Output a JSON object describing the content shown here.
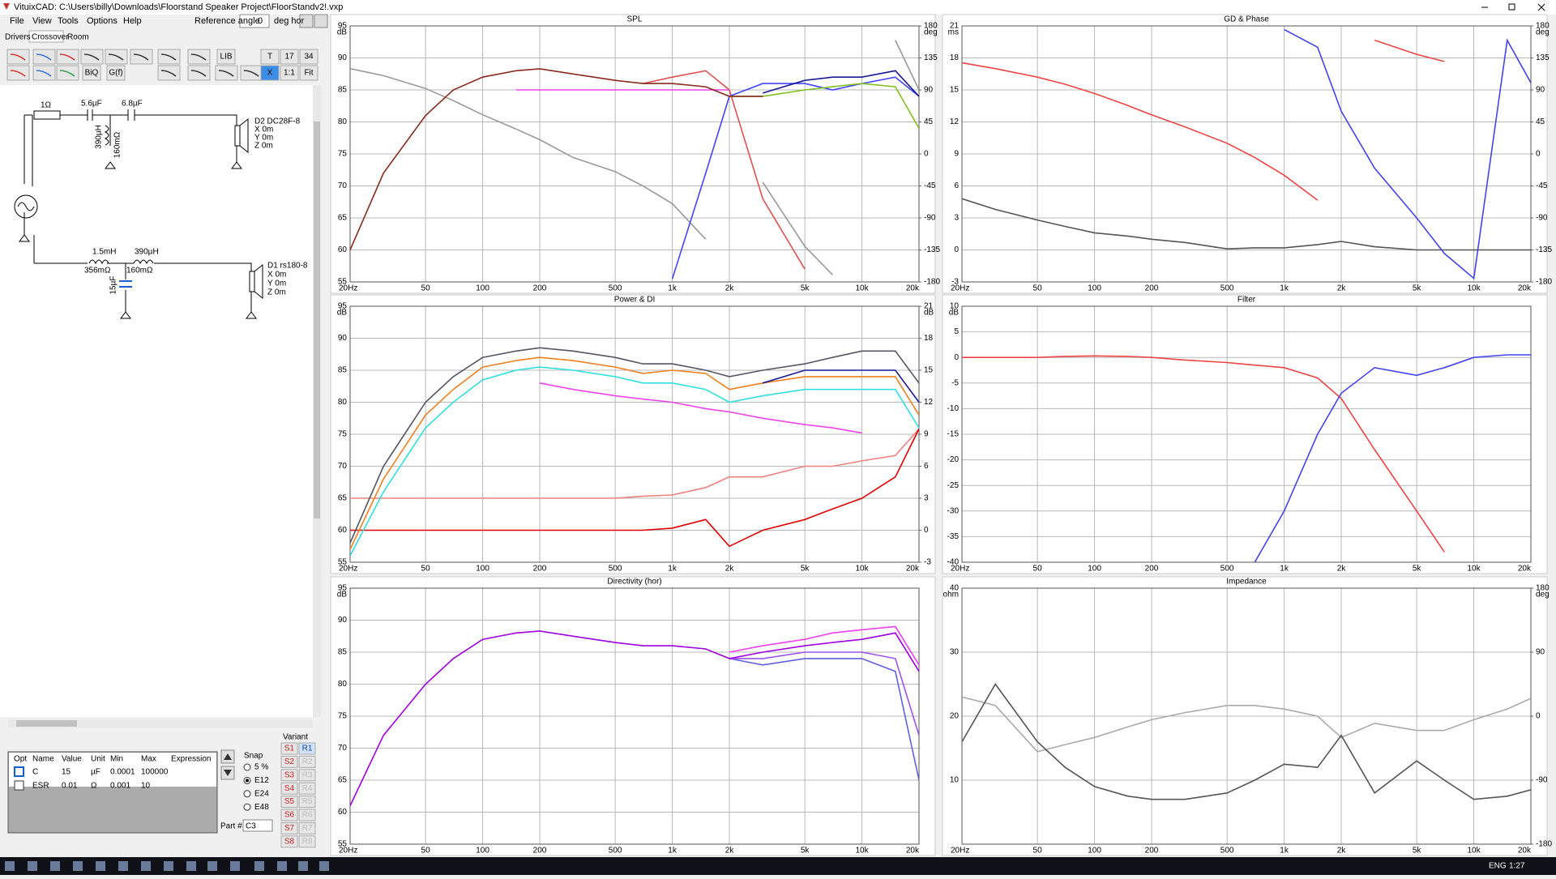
{
  "window": {
    "title": "VituixCAD: C:\\Users\\billy\\Downloads\\Floorstand Speaker Project\\FloorStandv2!.vxp",
    "menu": [
      "File",
      "View",
      "Tools",
      "Options",
      "Help"
    ],
    "reference_angle_label": "Reference angle",
    "reference_angle": "0",
    "reference_angle_unit": "deg hor"
  },
  "tabs": [
    "Drivers",
    "Crossover",
    "Room"
  ],
  "toolbar": [
    "LIB",
    "T",
    "17",
    "34",
    "BiQ",
    "G(f)",
    "X",
    "1:1",
    "Fit"
  ],
  "schematic": {
    "labels": [
      "1Ω",
      "5.6µF",
      "6.8µF",
      "390µH",
      "160mΩ",
      "D2 DC28F-8",
      "X 0m",
      "Y 0m",
      "Z 0m",
      "1.5mH",
      "356mΩ",
      "390µH",
      "160mΩ",
      "15µF",
      "D1 rs180-8",
      "X 0m",
      "Y 0m",
      "Z 0m"
    ]
  },
  "parts_table": {
    "headers": [
      "Opt",
      "Name",
      "Value",
      "Unit",
      "Min",
      "Max",
      "Expression"
    ],
    "rows": [
      {
        "name": "C",
        "value": "15",
        "unit": "µF",
        "min": "0.0001",
        "max": "100000"
      },
      {
        "name": "ESR",
        "value": "0.01",
        "unit": "Ω",
        "min": "0.001",
        "max": "10"
      }
    ]
  },
  "snap": {
    "label": "Snap",
    "options": [
      "5 %",
      "E12",
      "E24",
      "E48"
    ]
  },
  "variant": {
    "label": "Variant",
    "s": [
      "S1",
      "S2",
      "S3",
      "S4",
      "S5",
      "S6",
      "S7",
      "S8"
    ],
    "r": [
      "R1",
      "R2",
      "R3",
      "R4",
      "R5",
      "R6",
      "R7",
      "R8"
    ]
  },
  "part": {
    "label": "Part #",
    "value": "C3"
  },
  "taskbar": {
    "language": "ENG",
    "time": "1:27"
  },
  "chart_data": [
    {
      "type": "line",
      "title": "SPL",
      "y_unit": "dB",
      "y2_unit": "deg",
      "xlog": true,
      "xlim": [
        20,
        20000
      ],
      "xticks": [
        {
          "value": 20,
          "label": "20Hz"
        },
        50,
        100,
        200,
        500,
        {
          "value": 1000,
          "label": "1k"
        },
        {
          "value": 2000,
          "label": "2k"
        },
        {
          "value": 5000,
          "label": "5k"
        },
        {
          "value": 10000,
          "label": "10k"
        },
        {
          "value": 20000,
          "label": "20k"
        }
      ],
      "ylim": [
        55,
        95
      ],
      "yticks": [
        55,
        60,
        65,
        70,
        75,
        80,
        85,
        90,
        95
      ],
      "y2lim": [
        -180,
        180
      ],
      "y2ticks": [
        -180,
        -135,
        -90,
        -45,
        0,
        45,
        90,
        135,
        180
      ],
      "x": [
        20,
        30,
        50,
        70,
        100,
        150,
        200,
        300,
        500,
        700,
        1000,
        1500,
        2000,
        3000,
        5000,
        7000,
        10000,
        15000,
        20000
      ],
      "series": [
        {
          "color": "#999999",
          "axis": "y2",
          "values": [
            120,
            110,
            92,
            75,
            55,
            35,
            20,
            -5,
            -25,
            -45,
            -70,
            -120,
            null,
            -40,
            -130,
            -170,
            null,
            160,
            90
          ]
        },
        {
          "color": "#ee44ee",
          "values": [
            null,
            null,
            null,
            null,
            null,
            85,
            85,
            85,
            85,
            85,
            85,
            85,
            85,
            null,
            null,
            null,
            null,
            null,
            null
          ]
        },
        {
          "color": "#e05050",
          "values": [
            null,
            null,
            null,
            null,
            null,
            null,
            null,
            null,
            null,
            86,
            87,
            88,
            85,
            68,
            57,
            null,
            null,
            null,
            null
          ]
        },
        {
          "color": "#4444ff",
          "values": [
            null,
            null,
            null,
            null,
            null,
            null,
            null,
            null,
            null,
            null,
            55.5,
            72,
            84,
            86,
            86,
            85,
            86,
            87,
            84
          ]
        },
        {
          "color": "#80c020",
          "values": [
            null,
            null,
            null,
            null,
            null,
            null,
            null,
            null,
            null,
            null,
            null,
            null,
            84,
            84,
            85,
            85.5,
            86,
            85.5,
            79
          ]
        },
        {
          "color": "#8b2a1e",
          "values": [
            60,
            72,
            81,
            85,
            87,
            88,
            88.3,
            87.5,
            86.5,
            86,
            86,
            85.5,
            84,
            84,
            null,
            null,
            null,
            null,
            null
          ]
        },
        {
          "color": "#1a1a9a",
          "values": [
            null,
            null,
            null,
            null,
            null,
            null,
            null,
            null,
            null,
            null,
            null,
            null,
            null,
            84.5,
            86.5,
            87,
            87,
            88,
            84
          ]
        }
      ]
    },
    {
      "type": "line",
      "title": "GD & Phase",
      "y_unit": "ms",
      "y2_unit": "deg",
      "xlog": true,
      "xlim": [
        20,
        20000
      ],
      "xticks": [
        {
          "value": 20,
          "label": "20Hz"
        },
        50,
        100,
        200,
        500,
        {
          "value": 1000,
          "label": "1k"
        },
        {
          "value": 2000,
          "label": "2k"
        },
        {
          "value": 5000,
          "label": "5k"
        },
        {
          "value": 10000,
          "label": "10k"
        },
        {
          "value": 20000,
          "label": "20k"
        }
      ],
      "ylim": [
        -3,
        21
      ],
      "yticks": [
        -3,
        0,
        3,
        6,
        9,
        12,
        15,
        18,
        21
      ],
      "y2lim": [
        -180,
        180
      ],
      "y2ticks": [
        -180,
        -135,
        -90,
        -45,
        0,
        45,
        90,
        135,
        180
      ],
      "x": [
        20,
        30,
        50,
        70,
        100,
        150,
        200,
        300,
        500,
        700,
        1000,
        1500,
        2000,
        3000,
        5000,
        7000,
        10000,
        15000,
        20000
      ],
      "series": [
        {
          "color": "#555555",
          "values": [
            4.8,
            3.8,
            2.8,
            2.2,
            1.6,
            1.3,
            1,
            0.7,
            0.1,
            0.2,
            0.2,
            0.5,
            0.8,
            0.3,
            0,
            0,
            0,
            0,
            0
          ]
        },
        {
          "color": "#ee4444",
          "axis": "y2",
          "values": [
            128,
            120,
            108,
            98,
            85,
            68,
            55,
            38,
            15,
            -5,
            -30,
            -65,
            null,
            160,
            140,
            130,
            null,
            null,
            null
          ]
        },
        {
          "color": "#4444ee",
          "axis": "y2",
          "values": [
            null,
            null,
            null,
            null,
            null,
            null,
            null,
            null,
            null,
            null,
            175,
            150,
            60,
            -20,
            -90,
            -140,
            -175,
            160,
            100
          ]
        }
      ]
    },
    {
      "type": "line",
      "title": "Power & DI",
      "y_unit": "dB",
      "y2_unit": "dB",
      "xlog": true,
      "xlim": [
        20,
        20000
      ],
      "xticks": [
        {
          "value": 20,
          "label": "20Hz"
        },
        50,
        100,
        200,
        500,
        {
          "value": 1000,
          "label": "1k"
        },
        {
          "value": 2000,
          "label": "2k"
        },
        {
          "value": 5000,
          "label": "5k"
        },
        {
          "value": 10000,
          "label": "10k"
        },
        {
          "value": 20000,
          "label": "20k"
        }
      ],
      "ylim": [
        55,
        95
      ],
      "yticks": [
        55,
        60,
        65,
        70,
        75,
        80,
        85,
        90,
        95
      ],
      "y2lim": [
        -3,
        21
      ],
      "y2ticks": [
        -3,
        0,
        3,
        6,
        9,
        12,
        15,
        18,
        21
      ],
      "x": [
        20,
        30,
        50,
        70,
        100,
        150,
        200,
        300,
        500,
        700,
        1000,
        1500,
        2000,
        3000,
        5000,
        7000,
        10000,
        15000,
        20000
      ],
      "series": [
        {
          "color": "#ee44ee",
          "values": [
            null,
            null,
            null,
            null,
            null,
            null,
            83,
            82,
            81,
            80.5,
            80,
            79,
            78.5,
            77.5,
            76.5,
            76,
            75.2,
            null,
            null
          ]
        },
        {
          "color": "#f08080",
          "axis": "y2",
          "values": [
            3,
            3,
            3,
            3,
            3,
            3,
            3,
            3,
            3,
            3.2,
            3.3,
            4,
            5,
            5,
            6,
            6,
            6.5,
            7,
            9.5
          ]
        },
        {
          "color": "#e00000",
          "axis": "y2",
          "values": [
            0,
            0,
            0,
            0,
            0,
            0,
            0,
            0,
            0,
            0,
            0.2,
            1,
            -1.5,
            0,
            1,
            2,
            3,
            5,
            9.5
          ]
        },
        {
          "color": "#30e0e0",
          "values": [
            56,
            66,
            76,
            80,
            83.5,
            85,
            85.5,
            85,
            84,
            83,
            83,
            82,
            80,
            81,
            82,
            82,
            82,
            82,
            76
          ]
        },
        {
          "color": "#f08020",
          "values": [
            57,
            68,
            78,
            82,
            85.5,
            86.5,
            87,
            86.5,
            85.5,
            84.5,
            85,
            84.5,
            82,
            83,
            84,
            84,
            84,
            84,
            78
          ]
        },
        {
          "color": "#555566",
          "values": [
            58,
            70,
            80,
            84,
            87,
            88,
            88.5,
            88,
            87,
            86,
            86,
            85,
            84,
            85,
            86,
            87,
            88,
            88,
            83
          ]
        },
        {
          "color": "#1a1a9a",
          "values": [
            null,
            null,
            null,
            null,
            null,
            null,
            null,
            null,
            null,
            null,
            null,
            null,
            null,
            83,
            85,
            85,
            85,
            85,
            80
          ]
        }
      ]
    },
    {
      "type": "line",
      "title": "Filter",
      "y_unit": "dB",
      "xlog": true,
      "xlim": [
        20,
        20000
      ],
      "xticks": [
        {
          "value": 20,
          "label": "20Hz"
        },
        50,
        100,
        200,
        500,
        {
          "value": 1000,
          "label": "1k"
        },
        {
          "value": 2000,
          "label": "2k"
        },
        {
          "value": 5000,
          "label": "5k"
        },
        {
          "value": 10000,
          "label": "10k"
        },
        {
          "value": 20000,
          "label": "20k"
        }
      ],
      "ylim": [
        -40,
        10
      ],
      "yticks": [
        -40,
        -35,
        -30,
        -25,
        -20,
        -15,
        -10,
        -5,
        0,
        5,
        10
      ],
      "x": [
        20,
        30,
        50,
        70,
        100,
        150,
        200,
        300,
        500,
        700,
        1000,
        1500,
        2000,
        3000,
        5000,
        7000,
        10000,
        15000,
        20000
      ],
      "series": [
        {
          "color": "#ee4444",
          "values": [
            0,
            0,
            0,
            0.2,
            0.3,
            0.2,
            0,
            -0.5,
            -1,
            -1.5,
            -2,
            -4,
            -8,
            -18,
            -30,
            -38,
            null,
            null,
            null
          ]
        },
        {
          "color": "#4444ee",
          "values": [
            null,
            null,
            null,
            null,
            null,
            null,
            null,
            null,
            null,
            -40,
            -30,
            -15,
            -7,
            -2,
            -3.5,
            -2,
            0,
            0.5,
            0.5
          ]
        }
      ]
    },
    {
      "type": "line",
      "title": "Directivity (hor)",
      "y_unit": "dB",
      "xlog": true,
      "xlim": [
        20,
        20000
      ],
      "xticks": [
        {
          "value": 20,
          "label": "20Hz"
        },
        50,
        100,
        200,
        500,
        {
          "value": 1000,
          "label": "1k"
        },
        {
          "value": 2000,
          "label": "2k"
        },
        {
          "value": 5000,
          "label": "5k"
        },
        {
          "value": 10000,
          "label": "10k"
        },
        {
          "value": 20000,
          "label": "20k"
        }
      ],
      "ylim": [
        55,
        95
      ],
      "yticks": [
        55,
        60,
        65,
        70,
        75,
        80,
        85,
        90,
        95
      ],
      "x": [
        20,
        30,
        50,
        70,
        100,
        150,
        200,
        300,
        500,
        700,
        1000,
        1500,
        2000,
        3000,
        5000,
        7000,
        10000,
        15000,
        20000
      ],
      "series": [
        {
          "color": "#6060e0",
          "values": [
            null,
            null,
            null,
            null,
            null,
            null,
            null,
            null,
            null,
            null,
            null,
            null,
            84,
            83,
            84,
            84,
            84,
            82,
            65
          ]
        },
        {
          "color": "#a050f0",
          "values": [
            null,
            null,
            null,
            null,
            null,
            null,
            null,
            null,
            null,
            null,
            null,
            null,
            84,
            84,
            85,
            85,
            85,
            84,
            72
          ]
        },
        {
          "color": "#f040f0",
          "values": [
            null,
            null,
            null,
            null,
            null,
            null,
            null,
            null,
            null,
            null,
            null,
            null,
            85,
            86,
            87,
            88,
            88.5,
            89,
            83
          ]
        },
        {
          "color": "#a000e0",
          "values": [
            61,
            72,
            80,
            84,
            87,
            88,
            88.3,
            87.5,
            86.5,
            86,
            86,
            85.5,
            84,
            85,
            86,
            86.5,
            87,
            88,
            82
          ]
        }
      ]
    },
    {
      "type": "line",
      "title": "Impedance",
      "y_unit": "ohm",
      "y2_unit": "deg",
      "xlog": true,
      "xlim": [
        20,
        20000
      ],
      "xticks": [
        {
          "value": 20,
          "label": "20Hz"
        },
        50,
        100,
        200,
        500,
        {
          "value": 1000,
          "label": "1k"
        },
        {
          "value": 2000,
          "label": "2k"
        },
        {
          "value": 5000,
          "label": "5k"
        },
        {
          "value": 10000,
          "label": "10k"
        },
        {
          "value": 20000,
          "label": "20k"
        }
      ],
      "ylim": [
        0,
        40
      ],
      "yticks": [
        10,
        20,
        30,
        40
      ],
      "y2lim": [
        -180,
        180
      ],
      "y2ticks": [
        -180,
        -90,
        0,
        90,
        180
      ],
      "x": [
        20,
        30,
        50,
        70,
        100,
        150,
        200,
        300,
        500,
        700,
        1000,
        1500,
        2000,
        3000,
        5000,
        7000,
        10000,
        15000,
        20000
      ],
      "series": [
        {
          "color": "#aaaaaa",
          "axis": "y2",
          "values": [
            27,
            15,
            -50,
            -40,
            -30,
            -15,
            -5,
            5,
            15,
            15,
            10,
            0,
            -30,
            -10,
            -20,
            -20,
            -5,
            10,
            25
          ]
        },
        {
          "color": "#555555",
          "values": [
            16,
            25,
            16,
            12,
            9,
            7.5,
            7,
            7,
            8,
            10,
            12.5,
            12,
            17,
            8,
            13,
            10,
            7,
            7.5,
            8.5
          ]
        }
      ]
    }
  ]
}
